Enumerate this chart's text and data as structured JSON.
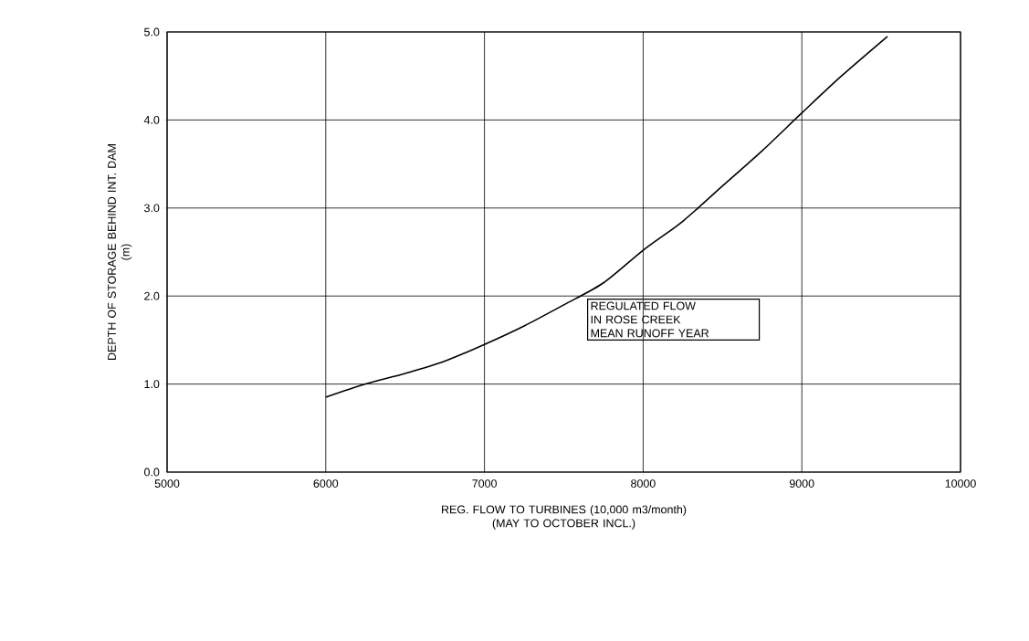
{
  "chart_data": {
    "type": "line",
    "xlabel": "REG. FLOW TO TURBINES (10,000 m3/month)\n(MAY TO OCTOBER INCL.)",
    "ylabel": "DEPTH OF STORAGE BEHIND INT. DAM\n(m)",
    "x": [
      6000,
      6250,
      6500,
      6750,
      7000,
      7250,
      7500,
      7750,
      8000,
      8250,
      8500,
      8750,
      9000,
      9250,
      9540
    ],
    "series": [
      {
        "color": "#000000",
        "values": [
          0.85,
          1.0,
          1.12,
          1.26,
          1.45,
          1.66,
          1.9,
          2.15,
          2.52,
          2.85,
          3.25,
          3.65,
          4.08,
          4.5,
          4.95
        ]
      }
    ],
    "xlim": [
      5000,
      10000
    ],
    "ylim": [
      0,
      5
    ],
    "xticks": [
      5000,
      6000,
      7000,
      8000,
      9000,
      10000
    ],
    "yticks": [
      {
        "value": 0,
        "label": "0.0"
      },
      {
        "value": 1,
        "label": "1.0"
      },
      {
        "value": 2,
        "label": "2.0"
      },
      {
        "value": 3,
        "label": "3.0"
      },
      {
        "value": 4,
        "label": "4.0"
      },
      {
        "value": 5,
        "label": "5.0"
      }
    ],
    "grid": true,
    "marker": "none",
    "line_style": "solid",
    "annotations": [
      "REGULATED FLOW\nIN ROSE CREEK\nMEAN RUNOFF YEAR"
    ]
  }
}
